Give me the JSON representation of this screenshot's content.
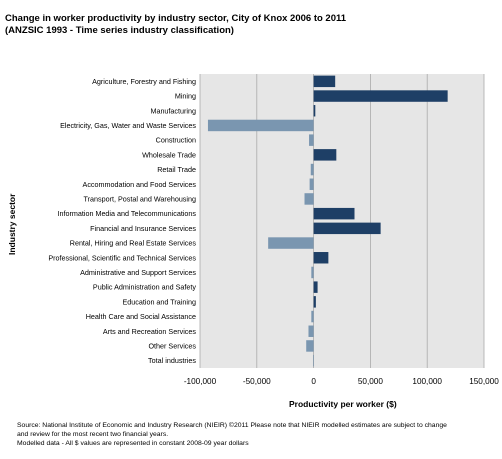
{
  "title_lines": [
    "Change in worker productivity by industry sector, City of Knox 2006 to 2011",
    "(ANZSIC 1993 - Time series industry classification)"
  ],
  "footer_lines": [
    "Source:  National Institute of Economic and Industry Research (NIEIR) ©2011  Please note that NIEIR modelled estimates are subject to change",
    "and review for the most recent two financial years.",
    "Modelled data - All $ values are represented in constant 2008-09 year dollars"
  ],
  "colors": {
    "positive": "#1e3f66",
    "negative": "#7a96b0",
    "plot_background": "#e6e6e6",
    "gridline": "#aaaaaa"
  },
  "chart_data": {
    "type": "bar",
    "orientation": "horizontal",
    "title": "Change in worker productivity by industry sector, City of Knox 2006 to 2011",
    "subtitle": "(ANZSIC 1993 - Time series industry classification)",
    "xlabel": "Productivity per worker ($)",
    "ylabel": "Industry sector",
    "xlim": [
      -100000,
      150000
    ],
    "xticks": [
      -100000,
      -50000,
      0,
      50000,
      100000,
      150000
    ],
    "xtick_labels": [
      "-100,000",
      "-50,000",
      "0",
      "50,000",
      "100,000",
      "150,000"
    ],
    "grid": true,
    "legend": "none",
    "categories": [
      "Agriculture, Forestry and Fishing",
      "Mining",
      "Manufacturing",
      "Electricity, Gas, Water and Waste Services",
      "Construction",
      "Wholesale Trade",
      "Retail Trade",
      "Accommodation and Food Services",
      "Transport, Postal and Warehousing",
      "Information Media and Telecommunications",
      "Financial and Insurance Services",
      "Rental, Hiring and Real Estate Services",
      "Professional, Scientific and Technical Services",
      "Administrative and Support Services",
      "Public Administration and Safety",
      "Education and Training",
      "Health Care and Social Assistance",
      "Arts and Recreation Services",
      "Other Services",
      "Total industries"
    ],
    "values": [
      19000,
      118000,
      1500,
      -93000,
      -4000,
      20000,
      -2500,
      -3500,
      -8000,
      36000,
      59000,
      -40000,
      13000,
      -2000,
      3500,
      2000,
      -2000,
      -4500,
      -6500,
      -500
    ]
  }
}
